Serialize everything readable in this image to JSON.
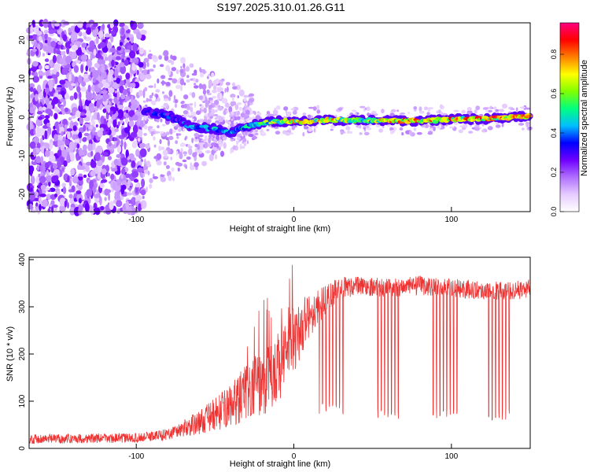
{
  "chart_data": [
    {
      "type": "heatmap",
      "title": "S197.2025.310.01.26.G11",
      "xlabel": "Height of straight line (km)",
      "ylabel": "Frequency (Hz)",
      "xlim": [
        -168,
        150
      ],
      "ylim": [
        -24.5,
        24.5
      ],
      "x_ticks": [
        -100,
        0,
        100
      ],
      "y_ticks": [
        -20,
        -10,
        0,
        10,
        20
      ],
      "colorbar": {
        "label": "Normalized spectral amplitude",
        "range": [
          0.0,
          0.96
        ],
        "ticks": [
          "0.0",
          "0.2",
          "0.4",
          "0.6",
          "0.8"
        ],
        "tick_values": [
          0.0,
          0.2,
          0.4,
          0.6,
          0.8
        ],
        "colors": [
          "#ffffff",
          "#e6ccff",
          "#b070ff",
          "#7000ff",
          "#0000ff",
          "#00bfff",
          "#00ff80",
          "#80ff00",
          "#ffff00",
          "#ff8000",
          "#ff0000",
          "#ff007f"
        ]
      },
      "frequency_track": {
        "x": [
          -95,
          -80,
          -65,
          -50,
          -40,
          -30,
          -20,
          -10,
          0,
          10,
          20,
          40,
          60,
          80,
          100,
          120,
          140,
          150
        ],
        "y": [
          1.5,
          0.5,
          -2.5,
          -3.0,
          -4.0,
          -2.5,
          -1.5,
          -1.0,
          -1.2,
          -1.0,
          -0.8,
          -0.8,
          -0.8,
          -1.0,
          -0.5,
          -0.5,
          0.0,
          0.2
        ],
        "amplitude": [
          0.35,
          0.38,
          0.45,
          0.5,
          0.45,
          0.55,
          0.6,
          0.75,
          0.8,
          0.75,
          0.8,
          0.7,
          0.8,
          0.9,
          0.85,
          0.88,
          0.85,
          0.8
        ]
      }
    },
    {
      "type": "line",
      "title": "",
      "xlabel": "Height of straight line (km)",
      "ylabel": "SNR (10 * v/v)",
      "xlim": [
        -168,
        150
      ],
      "ylim": [
        0,
        405
      ],
      "x_ticks": [
        -100,
        0,
        100
      ],
      "y_ticks": [
        0,
        100,
        200,
        300,
        400
      ],
      "color": "#ee3333",
      "envelope_x": [
        -168,
        -100,
        -80,
        -60,
        -40,
        -30,
        -20,
        -10,
        0,
        10,
        20,
        30,
        40,
        60,
        80,
        100,
        120,
        140,
        150
      ],
      "envelope_y": [
        20,
        22,
        30,
        55,
        90,
        120,
        140,
        170,
        230,
        280,
        315,
        340,
        345,
        340,
        345,
        340,
        335,
        335,
        338
      ],
      "noise_y": [
        10,
        10,
        12,
        25,
        45,
        60,
        70,
        80,
        70,
        45,
        30,
        25,
        20,
        20,
        20,
        20,
        20,
        20,
        20
      ],
      "dropouts": [
        {
          "x_range": [
            16,
            32
          ],
          "min": 72
        },
        {
          "x_range": [
            52,
            68
          ],
          "min": 62
        },
        {
          "x_range": [
            88,
            104
          ],
          "min": 62
        },
        {
          "x_range": [
            122,
            138
          ],
          "min": 60
        }
      ]
    }
  ]
}
